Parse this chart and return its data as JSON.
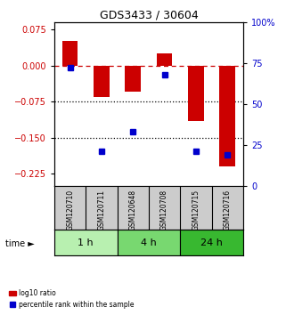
{
  "title": "GDS3433 / 30604",
  "samples": [
    "GSM120710",
    "GSM120711",
    "GSM120648",
    "GSM120708",
    "GSM120715",
    "GSM120716"
  ],
  "log10_ratio": [
    0.05,
    -0.065,
    -0.055,
    0.025,
    -0.115,
    -0.21
  ],
  "percentile_rank": [
    72,
    21,
    33,
    68,
    21,
    19
  ],
  "groups": [
    {
      "label": "1 h",
      "indices": [
        0,
        1
      ],
      "color": "#b8f0b0"
    },
    {
      "label": "4 h",
      "indices": [
        2,
        3
      ],
      "color": "#78d870"
    },
    {
      "label": "24 h",
      "indices": [
        4,
        5
      ],
      "color": "#38b830"
    }
  ],
  "bar_color": "#cc0000",
  "dot_color": "#0000cc",
  "ylim_left": [
    -0.25,
    0.09
  ],
  "ylim_right": [
    0,
    100
  ],
  "yticks_left": [
    0.075,
    0.0,
    -0.075,
    -0.15,
    -0.225
  ],
  "yticks_right": [
    100,
    75,
    50,
    25,
    0
  ],
  "hlines": [
    -0.075,
    -0.15
  ],
  "zero_line": 0.0,
  "bar_width": 0.5,
  "bg_color": "#ffffff",
  "header_bg": "#cccccc",
  "time_label": "time"
}
